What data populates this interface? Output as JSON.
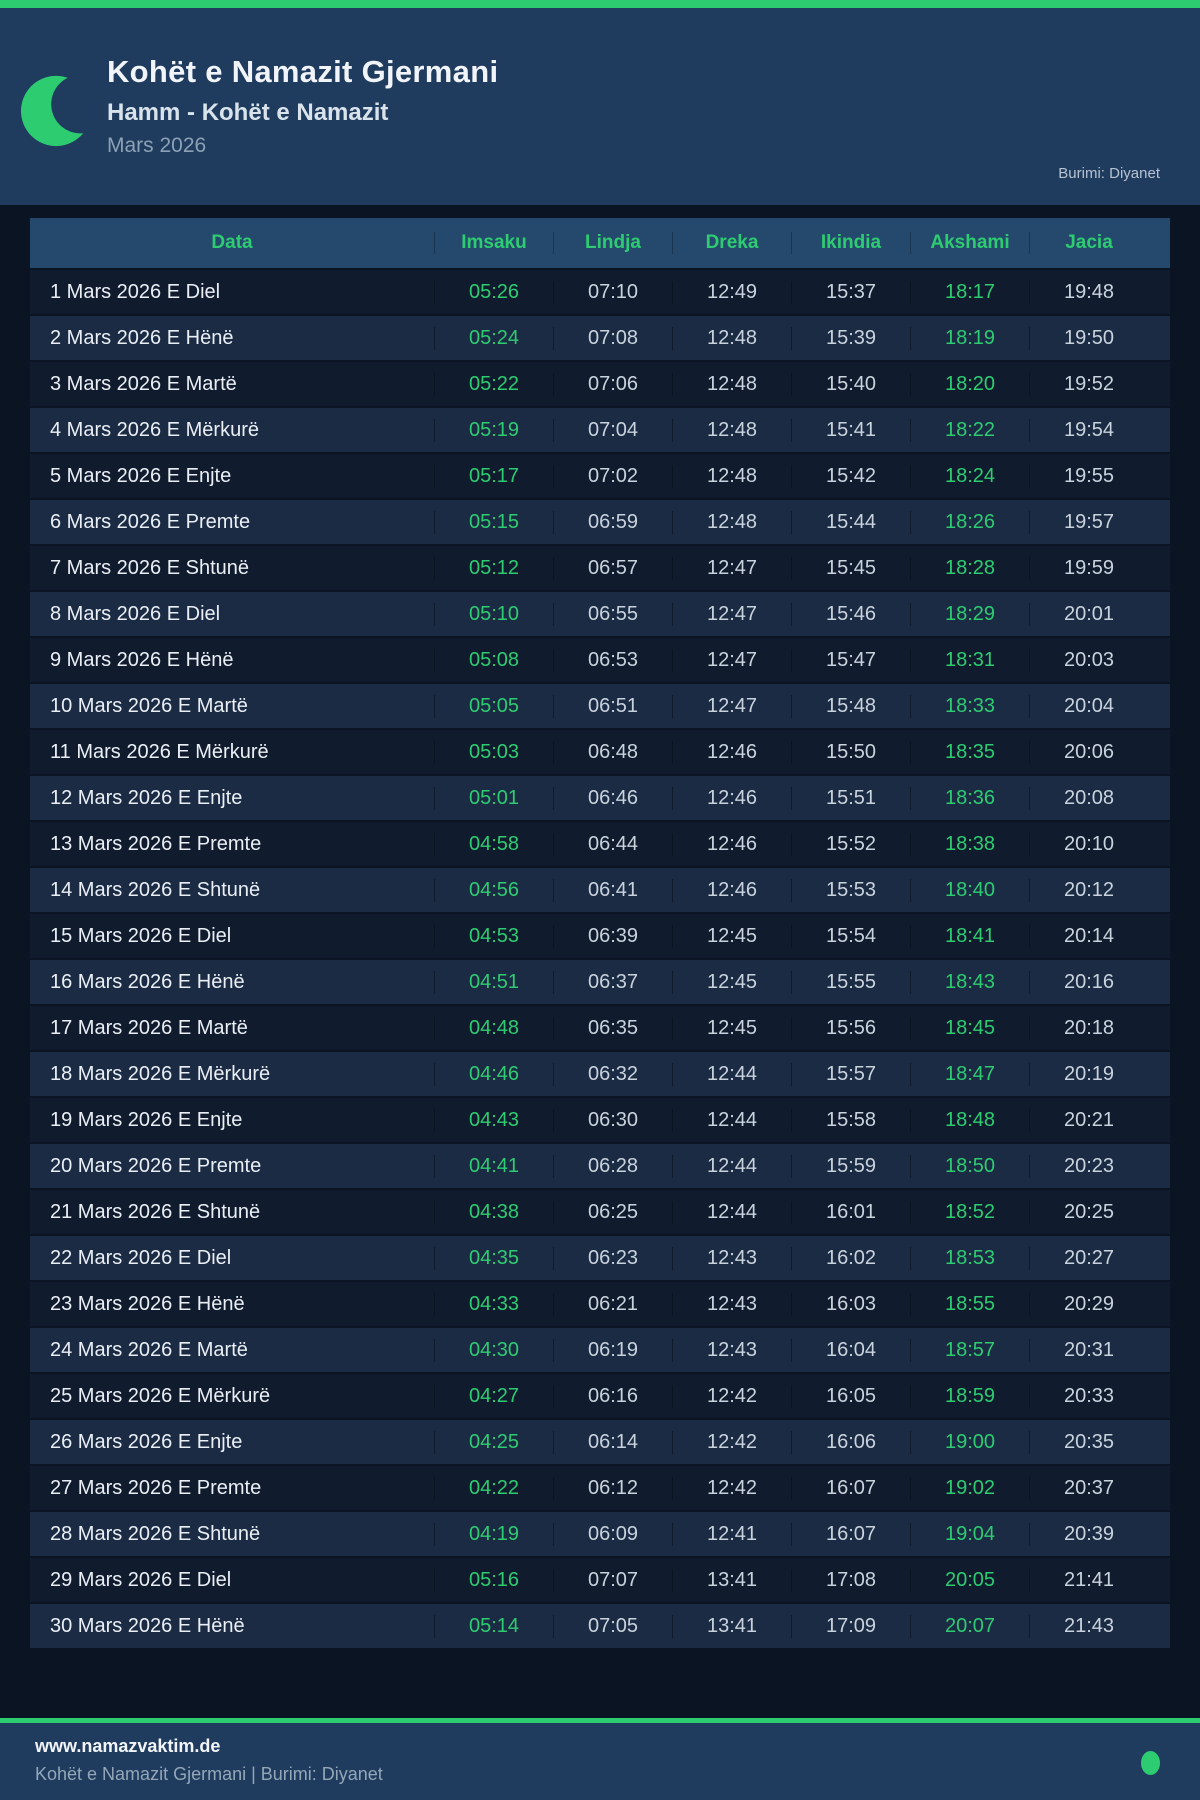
{
  "header": {
    "title": "Kohët e Namazit Gjermani",
    "subtitle": "Hamm - Kohët e Namazit",
    "period": "Mars 2026",
    "source": "Burimi: Diyanet"
  },
  "table": {
    "columns": [
      "Data",
      "Imsaku",
      "Lindja",
      "Dreka",
      "Ikindia",
      "Akshami",
      "Jacia"
    ],
    "green_time_columns": [
      "Imsaku",
      "Akshami"
    ],
    "rows": [
      {
        "date": "1 Mars 2026 E Diel",
        "times": [
          "05:26",
          "07:10",
          "12:49",
          "15:37",
          "18:17",
          "19:48"
        ]
      },
      {
        "date": "2 Mars 2026 E Hënë",
        "times": [
          "05:24",
          "07:08",
          "12:48",
          "15:39",
          "18:19",
          "19:50"
        ]
      },
      {
        "date": "3 Mars 2026 E Martë",
        "times": [
          "05:22",
          "07:06",
          "12:48",
          "15:40",
          "18:20",
          "19:52"
        ]
      },
      {
        "date": "4 Mars 2026 E Mërkurë",
        "times": [
          "05:19",
          "07:04",
          "12:48",
          "15:41",
          "18:22",
          "19:54"
        ]
      },
      {
        "date": "5 Mars 2026 E Enjte",
        "times": [
          "05:17",
          "07:02",
          "12:48",
          "15:42",
          "18:24",
          "19:55"
        ]
      },
      {
        "date": "6 Mars 2026 E Premte",
        "times": [
          "05:15",
          "06:59",
          "12:48",
          "15:44",
          "18:26",
          "19:57"
        ]
      },
      {
        "date": "7 Mars 2026 E Shtunë",
        "times": [
          "05:12",
          "06:57",
          "12:47",
          "15:45",
          "18:28",
          "19:59"
        ]
      },
      {
        "date": "8 Mars 2026 E Diel",
        "times": [
          "05:10",
          "06:55",
          "12:47",
          "15:46",
          "18:29",
          "20:01"
        ]
      },
      {
        "date": "9 Mars 2026 E Hënë",
        "times": [
          "05:08",
          "06:53",
          "12:47",
          "15:47",
          "18:31",
          "20:03"
        ]
      },
      {
        "date": "10 Mars 2026 E Martë",
        "times": [
          "05:05",
          "06:51",
          "12:47",
          "15:48",
          "18:33",
          "20:04"
        ]
      },
      {
        "date": "11 Mars 2026 E Mërkurë",
        "times": [
          "05:03",
          "06:48",
          "12:46",
          "15:50",
          "18:35",
          "20:06"
        ]
      },
      {
        "date": "12 Mars 2026 E Enjte",
        "times": [
          "05:01",
          "06:46",
          "12:46",
          "15:51",
          "18:36",
          "20:08"
        ]
      },
      {
        "date": "13 Mars 2026 E Premte",
        "times": [
          "04:58",
          "06:44",
          "12:46",
          "15:52",
          "18:38",
          "20:10"
        ]
      },
      {
        "date": "14 Mars 2026 E Shtunë",
        "times": [
          "04:56",
          "06:41",
          "12:46",
          "15:53",
          "18:40",
          "20:12"
        ]
      },
      {
        "date": "15 Mars 2026 E Diel",
        "times": [
          "04:53",
          "06:39",
          "12:45",
          "15:54",
          "18:41",
          "20:14"
        ]
      },
      {
        "date": "16 Mars 2026 E Hënë",
        "times": [
          "04:51",
          "06:37",
          "12:45",
          "15:55",
          "18:43",
          "20:16"
        ]
      },
      {
        "date": "17 Mars 2026 E Martë",
        "times": [
          "04:48",
          "06:35",
          "12:45",
          "15:56",
          "18:45",
          "20:18"
        ]
      },
      {
        "date": "18 Mars 2026 E Mërkurë",
        "times": [
          "04:46",
          "06:32",
          "12:44",
          "15:57",
          "18:47",
          "20:19"
        ]
      },
      {
        "date": "19 Mars 2026 E Enjte",
        "times": [
          "04:43",
          "06:30",
          "12:44",
          "15:58",
          "18:48",
          "20:21"
        ]
      },
      {
        "date": "20 Mars 2026 E Premte",
        "times": [
          "04:41",
          "06:28",
          "12:44",
          "15:59",
          "18:50",
          "20:23"
        ]
      },
      {
        "date": "21 Mars 2026 E Shtunë",
        "times": [
          "04:38",
          "06:25",
          "12:44",
          "16:01",
          "18:52",
          "20:25"
        ]
      },
      {
        "date": "22 Mars 2026 E Diel",
        "times": [
          "04:35",
          "06:23",
          "12:43",
          "16:02",
          "18:53",
          "20:27"
        ]
      },
      {
        "date": "23 Mars 2026 E Hënë",
        "times": [
          "04:33",
          "06:21",
          "12:43",
          "16:03",
          "18:55",
          "20:29"
        ]
      },
      {
        "date": "24 Mars 2026 E Martë",
        "times": [
          "04:30",
          "06:19",
          "12:43",
          "16:04",
          "18:57",
          "20:31"
        ]
      },
      {
        "date": "25 Mars 2026 E Mërkurë",
        "times": [
          "04:27",
          "06:16",
          "12:42",
          "16:05",
          "18:59",
          "20:33"
        ]
      },
      {
        "date": "26 Mars 2026 E Enjte",
        "times": [
          "04:25",
          "06:14",
          "12:42",
          "16:06",
          "19:00",
          "20:35"
        ]
      },
      {
        "date": "27 Mars 2026 E Premte",
        "times": [
          "04:22",
          "06:12",
          "12:42",
          "16:07",
          "19:02",
          "20:37"
        ]
      },
      {
        "date": "28 Mars 2026 E Shtunë",
        "times": [
          "04:19",
          "06:09",
          "12:41",
          "16:07",
          "19:04",
          "20:39"
        ]
      },
      {
        "date": "29 Mars 2026 E Diel",
        "times": [
          "05:16",
          "07:07",
          "13:41",
          "17:08",
          "20:05",
          "21:41"
        ]
      },
      {
        "date": "30 Mars 2026 E Hënë",
        "times": [
          "05:14",
          "07:05",
          "13:41",
          "17:09",
          "20:07",
          "21:43"
        ]
      }
    ]
  },
  "footer": {
    "website": "www.namazvaktim.de",
    "caption": "Kohët e Namazit Gjermani | Burimi: Diyanet"
  },
  "colors": {
    "accent_green": "#2ecc71",
    "header_bg": "#1f3b5e",
    "table_header_bg": "#25496d",
    "row_odd_bg": "#101c2e",
    "row_even_bg": "#1b2b44",
    "page_bg": "#0b1423",
    "time_text": "#c9d3dd",
    "date_text": "#eaeff5"
  }
}
